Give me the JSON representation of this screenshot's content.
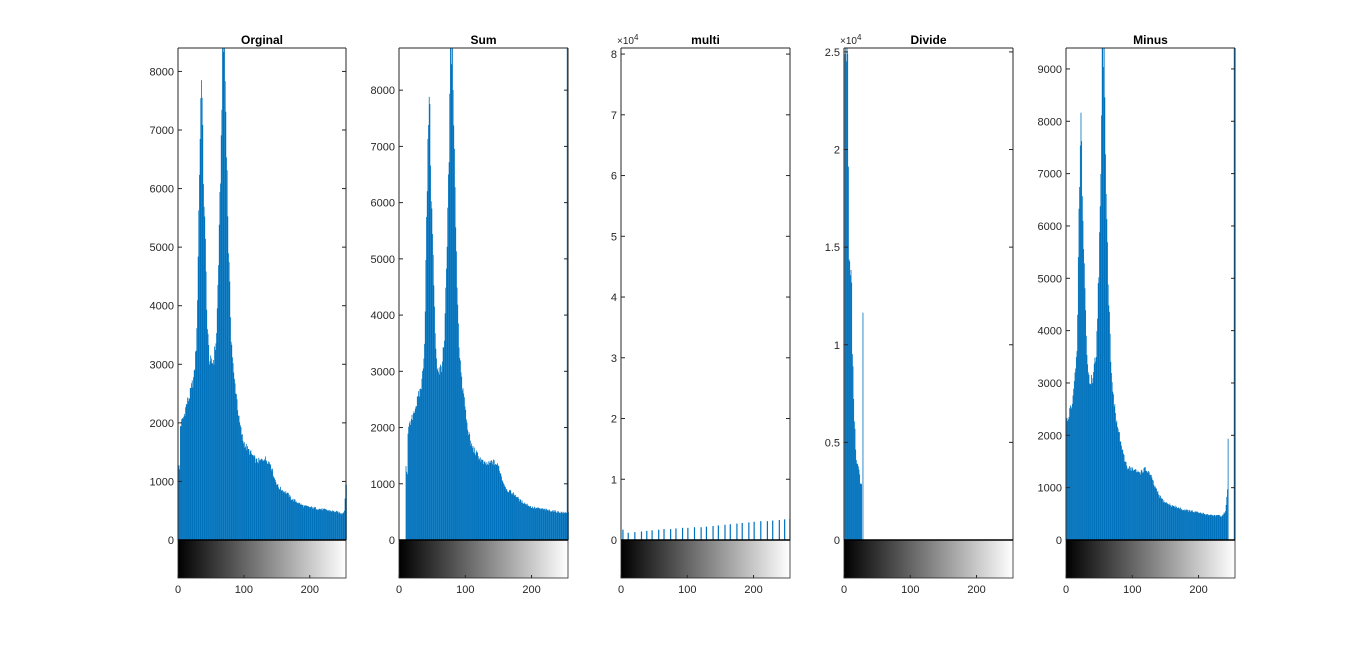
{
  "chart_data": [
    {
      "type": "bar",
      "title": "Orginal",
      "xlim": [
        0,
        255
      ],
      "ylim": [
        0,
        8400
      ],
      "xticks": [
        "0",
        "100",
        "200"
      ],
      "yticks": [
        "0",
        "1000",
        "2000",
        "3000",
        "4000",
        "5000",
        "6000",
        "7000",
        "8000"
      ],
      "ytick_values": [
        0,
        1000,
        2000,
        3000,
        4000,
        5000,
        6000,
        7000,
        8000
      ],
      "y_exponent": "",
      "bar_color": "#0072BD",
      "profile": [
        [
          0,
          1300
        ],
        [
          1,
          1250
        ],
        [
          2,
          1200
        ],
        [
          3,
          1950
        ],
        [
          8,
          2100
        ],
        [
          12,
          2300
        ],
        [
          18,
          2500
        ],
        [
          24,
          2800
        ],
        [
          28,
          3500
        ],
        [
          32,
          6300
        ],
        [
          35,
          8100
        ],
        [
          38,
          6200
        ],
        [
          41,
          5000
        ],
        [
          44,
          3600
        ],
        [
          47,
          3100
        ],
        [
          50,
          3000
        ],
        [
          54,
          3100
        ],
        [
          58,
          3500
        ],
        [
          62,
          5200
        ],
        [
          65,
          6800
        ],
        [
          67,
          8400
        ],
        [
          70,
          8400
        ],
        [
          73,
          6800
        ],
        [
          76,
          5000
        ],
        [
          80,
          3500
        ],
        [
          84,
          2800
        ],
        [
          88,
          2500
        ],
        [
          92,
          2050
        ],
        [
          98,
          1700
        ],
        [
          105,
          1550
        ],
        [
          112,
          1450
        ],
        [
          118,
          1350
        ],
        [
          125,
          1350
        ],
        [
          130,
          1400
        ],
        [
          136,
          1350
        ],
        [
          140,
          1300
        ],
        [
          146,
          1050
        ],
        [
          152,
          900
        ],
        [
          158,
          850
        ],
        [
          165,
          800
        ],
        [
          172,
          700
        ],
        [
          180,
          650
        ],
        [
          190,
          580
        ],
        [
          200,
          560
        ],
        [
          210,
          540
        ],
        [
          220,
          520
        ],
        [
          230,
          500
        ],
        [
          240,
          480
        ],
        [
          248,
          450
        ],
        [
          252,
          500
        ],
        [
          254,
          950
        ]
      ]
    },
    {
      "type": "bar",
      "title": "Sum",
      "xlim": [
        0,
        255
      ],
      "ylim": [
        0,
        8750
      ],
      "xticks": [
        "0",
        "100",
        "200"
      ],
      "yticks": [
        "0",
        "1000",
        "2000",
        "3000",
        "4000",
        "5000",
        "6000",
        "7000",
        "8000"
      ],
      "ytick_values": [
        0,
        1000,
        2000,
        3000,
        4000,
        5000,
        6000,
        7000,
        8000
      ],
      "y_exponent": "",
      "bar_color": "#0072BD",
      "spike_right": 8750,
      "profile": [
        [
          0,
          0
        ],
        [
          9,
          0
        ],
        [
          10,
          1300
        ],
        [
          11,
          1250
        ],
        [
          12,
          1200
        ],
        [
          13,
          1950
        ],
        [
          18,
          2100
        ],
        [
          22,
          2300
        ],
        [
          28,
          2500
        ],
        [
          34,
          2800
        ],
        [
          38,
          3500
        ],
        [
          42,
          6300
        ],
        [
          45,
          8100
        ],
        [
          48,
          6200
        ],
        [
          51,
          5000
        ],
        [
          54,
          3600
        ],
        [
          57,
          3100
        ],
        [
          60,
          3000
        ],
        [
          64,
          3100
        ],
        [
          68,
          3500
        ],
        [
          72,
          5200
        ],
        [
          75,
          6800
        ],
        [
          77,
          8750
        ],
        [
          80,
          8750
        ],
        [
          83,
          6800
        ],
        [
          86,
          5000
        ],
        [
          90,
          3500
        ],
        [
          94,
          2800
        ],
        [
          98,
          2500
        ],
        [
          102,
          2050
        ],
        [
          108,
          1700
        ],
        [
          115,
          1550
        ],
        [
          122,
          1450
        ],
        [
          128,
          1350
        ],
        [
          135,
          1350
        ],
        [
          140,
          1400
        ],
        [
          146,
          1350
        ],
        [
          150,
          1300
        ],
        [
          156,
          1050
        ],
        [
          162,
          900
        ],
        [
          168,
          850
        ],
        [
          175,
          800
        ],
        [
          182,
          700
        ],
        [
          190,
          650
        ],
        [
          200,
          580
        ],
        [
          210,
          560
        ],
        [
          220,
          540
        ],
        [
          230,
          520
        ],
        [
          240,
          500
        ],
        [
          250,
          480
        ],
        [
          254,
          500
        ]
      ]
    },
    {
      "type": "bar",
      "title": "multi",
      "xlim": [
        0,
        255
      ],
      "ylim": [
        0,
        8.1
      ],
      "xticks": [
        "0",
        "100",
        "200"
      ],
      "yticks": [
        "0",
        "1",
        "2",
        "3",
        "4",
        "5",
        "6",
        "7",
        "8"
      ],
      "ytick_values": [
        0,
        1,
        2,
        3,
        4,
        5,
        6,
        7,
        8
      ],
      "y_exponent": "4",
      "bar_color": "#0072BD",
      "spikes": [
        [
          2,
          0.17
        ],
        [
          10,
          0.12
        ],
        [
          20,
          0.13
        ],
        [
          30,
          0.14
        ],
        [
          38,
          0.15
        ],
        [
          46,
          0.16
        ],
        [
          56,
          0.17
        ],
        [
          64,
          0.18
        ],
        [
          74,
          0.18
        ],
        [
          82,
          0.19
        ],
        [
          92,
          0.2
        ],
        [
          100,
          0.2
        ],
        [
          110,
          0.21
        ],
        [
          120,
          0.21
        ],
        [
          128,
          0.22
        ],
        [
          138,
          0.23
        ],
        [
          146,
          0.24
        ],
        [
          156,
          0.25
        ],
        [
          164,
          0.26
        ],
        [
          174,
          0.27
        ],
        [
          182,
          0.28
        ],
        [
          192,
          0.29
        ],
        [
          200,
          0.3
        ],
        [
          210,
          0.31
        ],
        [
          220,
          0.31
        ],
        [
          228,
          0.32
        ],
        [
          238,
          0.33
        ],
        [
          246,
          0.34
        ],
        [
          254,
          0.35
        ]
      ]
    },
    {
      "type": "bar",
      "title": "Divide",
      "xlim": [
        0,
        255
      ],
      "ylim": [
        0,
        2.52
      ],
      "xticks": [
        "0",
        "100",
        "200"
      ],
      "yticks": [
        "0",
        "0.5",
        "1",
        "1.5",
        "2",
        "2.5"
      ],
      "ytick_values": [
        0,
        0.5,
        1,
        1.5,
        2,
        2.5
      ],
      "y_exponent": "4",
      "bar_color": "#0072BD",
      "profile": [
        [
          0,
          0
        ],
        [
          1,
          2.52
        ],
        [
          5,
          2.52
        ],
        [
          7,
          1.45
        ],
        [
          9,
          1.4
        ],
        [
          11,
          1.35
        ],
        [
          12,
          0.95
        ],
        [
          13,
          0.9
        ],
        [
          14,
          0.75
        ],
        [
          15,
          0.6
        ],
        [
          16,
          0.55
        ],
        [
          17,
          0.45
        ],
        [
          19,
          0.4
        ],
        [
          21,
          0.38
        ],
        [
          24,
          0.3
        ],
        [
          26,
          0.28
        ],
        [
          27,
          0
        ],
        [
          28,
          1.18
        ],
        [
          29,
          0
        ]
      ]
    },
    {
      "type": "bar",
      "title": "Minus",
      "xlim": [
        0,
        255
      ],
      "ylim": [
        0,
        9400
      ],
      "xticks": [
        "0",
        "100",
        "200"
      ],
      "yticks": [
        "0",
        "1000",
        "2000",
        "3000",
        "4000",
        "5000",
        "6000",
        "7000",
        "8000",
        "9000"
      ],
      "ytick_values": [
        0,
        1000,
        2000,
        3000,
        4000,
        5000,
        6000,
        7000,
        8000,
        9000
      ],
      "y_exponent": "",
      "bar_color": "#0072BD",
      "spike_right": 9400,
      "profile": [
        [
          0,
          2300
        ],
        [
          2,
          2250
        ],
        [
          4,
          2400
        ],
        [
          8,
          2600
        ],
        [
          12,
          3000
        ],
        [
          16,
          3500
        ],
        [
          19,
          6200
        ],
        [
          22,
          8100
        ],
        [
          25,
          6100
        ],
        [
          28,
          4800
        ],
        [
          31,
          3500
        ],
        [
          34,
          3100
        ],
        [
          37,
          3000
        ],
        [
          41,
          3200
        ],
        [
          45,
          3600
        ],
        [
          49,
          5200
        ],
        [
          52,
          6800
        ],
        [
          54,
          9400
        ],
        [
          57,
          9400
        ],
        [
          60,
          6800
        ],
        [
          63,
          5000
        ],
        [
          67,
          3500
        ],
        [
          71,
          2700
        ],
        [
          75,
          2300
        ],
        [
          80,
          2000
        ],
        [
          86,
          1600
        ],
        [
          92,
          1400
        ],
        [
          100,
          1350
        ],
        [
          106,
          1300
        ],
        [
          112,
          1300
        ],
        [
          118,
          1350
        ],
        [
          124,
          1300
        ],
        [
          128,
          1200
        ],
        [
          134,
          1000
        ],
        [
          140,
          850
        ],
        [
          146,
          750
        ],
        [
          152,
          700
        ],
        [
          160,
          650
        ],
        [
          168,
          620
        ],
        [
          176,
          580
        ],
        [
          184,
          560
        ],
        [
          192,
          540
        ],
        [
          200,
          520
        ],
        [
          208,
          500
        ],
        [
          216,
          480
        ],
        [
          224,
          470
        ],
        [
          232,
          460
        ],
        [
          236,
          470
        ],
        [
          240,
          550
        ],
        [
          242,
          800
        ],
        [
          243,
          1000
        ],
        [
          244,
          2000
        ],
        [
          245,
          0
        ]
      ]
    }
  ]
}
